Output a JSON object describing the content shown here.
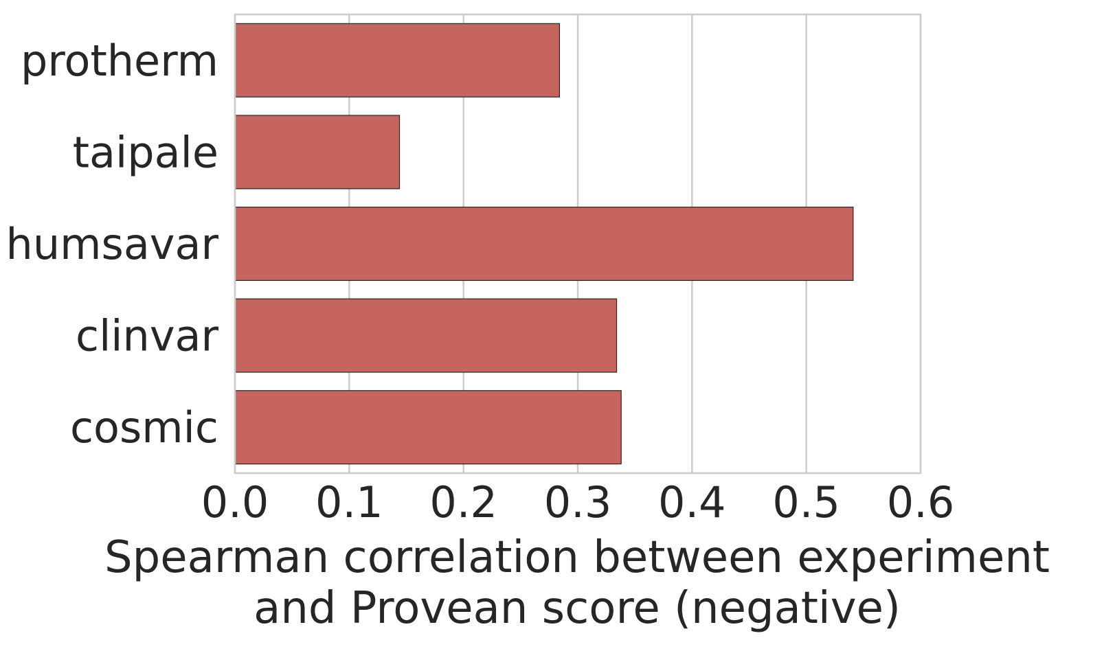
{
  "chart_data": {
    "type": "bar",
    "orientation": "horizontal",
    "categories": [
      "protherm",
      "taipale",
      "humsavar",
      "clinvar",
      "cosmic"
    ],
    "values": [
      0.284,
      0.144,
      0.541,
      0.334,
      0.338
    ],
    "xlabel_lines": [
      "Spearman correlation between experiment",
      "and Provean score (negative)"
    ],
    "xlim": [
      0.0,
      0.6
    ],
    "xticks": [
      "0.0",
      "0.1",
      "0.2",
      "0.3",
      "0.4",
      "0.5",
      "0.6"
    ],
    "grid": "vertical",
    "legend": "none",
    "bar_color": "#c6645f",
    "bar_edge_color": "#262626",
    "grid_color": "#cccccc",
    "text_color": "#262626"
  }
}
